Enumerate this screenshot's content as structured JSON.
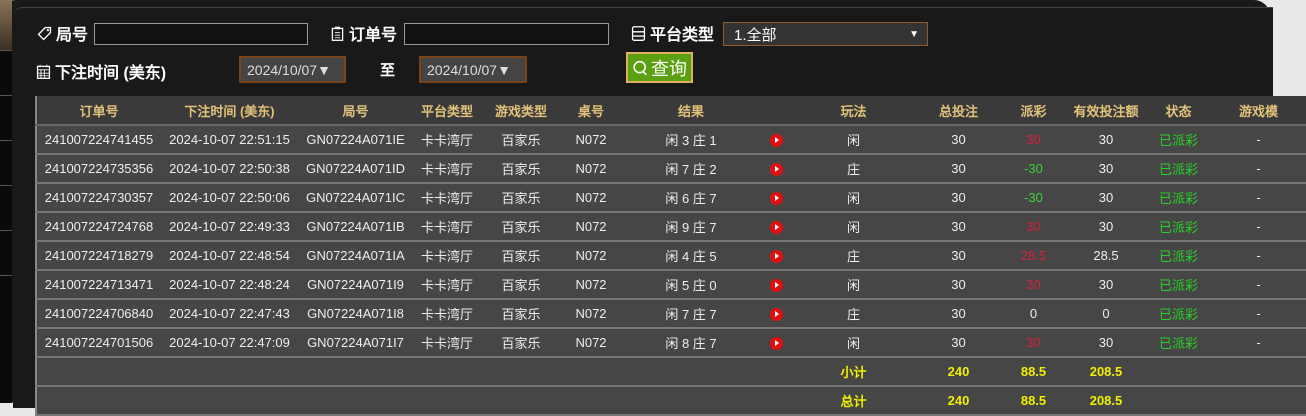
{
  "filters": {
    "round_label": "局号",
    "round_value": "",
    "order_label": "订单号",
    "order_value": "",
    "platform_label": "平台类型",
    "platform_value": "1.全部",
    "time_label": "下注时间 (美东)",
    "date_from": "2024/10/07",
    "to_label": "至",
    "date_to": "2024/10/07",
    "query_label": "查询"
  },
  "table": {
    "headers": [
      "订单号",
      "下注时间 (美东)",
      "局号",
      "平台类型",
      "游戏类型",
      "桌号",
      "结果",
      "",
      "玩法",
      "总投注",
      "派彩",
      "有效投注额",
      "状态",
      "游戏模"
    ],
    "rows": [
      {
        "order": "241007224741455",
        "time": "2024-10-07 22:51:15",
        "round": "GN07224A071IE",
        "platform": "卡卡湾厅",
        "game": "百家乐",
        "table": "N072",
        "result": "闲 3 庄 1",
        "play": "闲",
        "bet": "30",
        "payout": "30",
        "payout_color": "red",
        "valid": "30",
        "status": "已派彩",
        "mode": "-"
      },
      {
        "order": "241007224735356",
        "time": "2024-10-07 22:50:38",
        "round": "GN07224A071ID",
        "platform": "卡卡湾厅",
        "game": "百家乐",
        "table": "N072",
        "result": "闲 7 庄 2",
        "play": "庄",
        "bet": "30",
        "payout": "-30",
        "payout_color": "green",
        "valid": "30",
        "status": "已派彩",
        "mode": "-"
      },
      {
        "order": "241007224730357",
        "time": "2024-10-07 22:50:06",
        "round": "GN07224A071IC",
        "platform": "卡卡湾厅",
        "game": "百家乐",
        "table": "N072",
        "result": "闲 6 庄 7",
        "play": "闲",
        "bet": "30",
        "payout": "-30",
        "payout_color": "green",
        "valid": "30",
        "status": "已派彩",
        "mode": "-"
      },
      {
        "order": "241007224724768",
        "time": "2024-10-07 22:49:33",
        "round": "GN07224A071IB",
        "platform": "卡卡湾厅",
        "game": "百家乐",
        "table": "N072",
        "result": "闲 9 庄 7",
        "play": "闲",
        "bet": "30",
        "payout": "30",
        "payout_color": "red",
        "valid": "30",
        "status": "已派彩",
        "mode": "-"
      },
      {
        "order": "241007224718279",
        "time": "2024-10-07 22:48:54",
        "round": "GN07224A071IA",
        "platform": "卡卡湾厅",
        "game": "百家乐",
        "table": "N072",
        "result": "闲 4 庄 5",
        "play": "庄",
        "bet": "30",
        "payout": "28.5",
        "payout_color": "red",
        "valid": "28.5",
        "status": "已派彩",
        "mode": "-"
      },
      {
        "order": "241007224713471",
        "time": "2024-10-07 22:48:24",
        "round": "GN07224A071I9",
        "platform": "卡卡湾厅",
        "game": "百家乐",
        "table": "N072",
        "result": "闲 5 庄 0",
        "play": "闲",
        "bet": "30",
        "payout": "30",
        "payout_color": "red",
        "valid": "30",
        "status": "已派彩",
        "mode": "-"
      },
      {
        "order": "241007224706840",
        "time": "2024-10-07 22:47:43",
        "round": "GN07224A071I8",
        "platform": "卡卡湾厅",
        "game": "百家乐",
        "table": "N072",
        "result": "闲 7 庄 7",
        "play": "庄",
        "bet": "30",
        "payout": "0",
        "payout_color": "white",
        "valid": "0",
        "status": "已派彩",
        "mode": "-"
      },
      {
        "order": "241007224701506",
        "time": "2024-10-07 22:47:09",
        "round": "GN07224A071I7",
        "platform": "卡卡湾厅",
        "game": "百家乐",
        "table": "N072",
        "result": "闲 8 庄 7",
        "play": "闲",
        "bet": "30",
        "payout": "30",
        "payout_color": "red",
        "valid": "30",
        "status": "已派彩",
        "mode": "-"
      }
    ],
    "subtotal": {
      "label": "小计",
      "bet": "240",
      "payout": "88.5",
      "valid": "208.5"
    },
    "total": {
      "label": "总计",
      "bet": "240",
      "payout": "88.5",
      "valid": "208.5"
    }
  },
  "colors": {
    "accent": "#5aa010",
    "header_text": "#e2c27a",
    "win": "#d4203a",
    "loss": "#3ad43a",
    "status": "#28d028",
    "summary": "#f0f000"
  }
}
